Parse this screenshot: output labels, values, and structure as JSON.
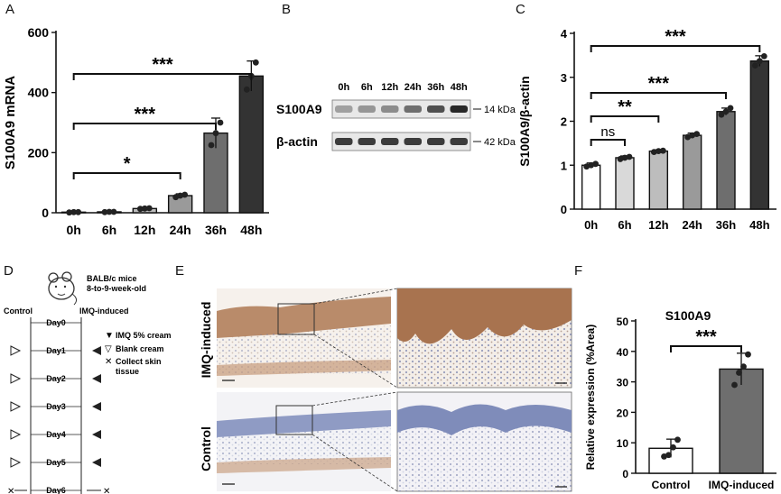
{
  "panels": {
    "a": "A",
    "b": "B",
    "c": "C",
    "d": "D",
    "e": "E",
    "f": "F"
  },
  "colors": {
    "white": "#ffffff",
    "light": "#d9d9d9",
    "mid1": "#bdbdbd",
    "mid2": "#9a9a9a",
    "dark1": "#6e6e6e",
    "dark2": "#333333",
    "dot": "#222222",
    "tissue": "#b07a52",
    "stainBlue": "#9aa6c8"
  },
  "chart_data": [
    {
      "id": "A",
      "type": "bar",
      "categories": [
        "0h",
        "6h",
        "12h",
        "24h",
        "36h",
        "48h"
      ],
      "values": [
        2,
        3,
        14,
        57,
        265,
        455
      ],
      "errors": [
        1,
        1,
        3,
        6,
        50,
        50
      ],
      "points": [
        [
          1,
          2,
          2
        ],
        [
          2,
          3,
          3
        ],
        [
          13,
          14,
          15
        ],
        [
          52,
          57,
          60
        ],
        [
          225,
          265,
          300
        ],
        [
          410,
          455,
          500
        ]
      ],
      "ylabel": "S100A9 mRNA",
      "ylim": [
        0,
        600
      ],
      "yticks": [
        0,
        200,
        400,
        600
      ],
      "annotations": [
        {
          "from": "0h",
          "to": "24h",
          "label": "*"
        },
        {
          "from": "0h",
          "to": "36h",
          "label": "***"
        },
        {
          "from": "0h",
          "to": "48h",
          "label": "***"
        }
      ]
    },
    {
      "id": "C",
      "type": "bar",
      "categories": [
        "0h",
        "6h",
        "12h",
        "24h",
        "36h",
        "48h"
      ],
      "values": [
        1.0,
        1.17,
        1.32,
        1.68,
        2.22,
        3.37
      ],
      "errors": [
        0.05,
        0.04,
        0.03,
        0.05,
        0.08,
        0.12
      ],
      "points": [
        [
          0.97,
          1.0,
          1.03
        ],
        [
          1.14,
          1.17,
          1.19
        ],
        [
          1.3,
          1.32,
          1.33
        ],
        [
          1.64,
          1.68,
          1.71
        ],
        [
          2.15,
          2.22,
          2.3
        ],
        [
          3.27,
          3.37,
          3.48
        ]
      ],
      "ylabel": "S100A9/β-actin",
      "ylim": [
        0,
        4
      ],
      "yticks": [
        0,
        1,
        2,
        3,
        4
      ],
      "annotations": [
        {
          "from": "0h",
          "to": "6h",
          "label": "ns"
        },
        {
          "from": "0h",
          "to": "12h",
          "label": "**"
        },
        {
          "from": "0h",
          "to": "36h",
          "label": "***"
        },
        {
          "from": "0h",
          "to": "48h",
          "label": "***"
        }
      ]
    },
    {
      "id": "F",
      "type": "bar",
      "title": "S100A9",
      "categories": [
        "Control",
        "IMQ-induced"
      ],
      "values": [
        8.2,
        34.2
      ],
      "errors": [
        3.0,
        5.2
      ],
      "points": [
        [
          5.5,
          6,
          8.5,
          11
        ],
        [
          29,
          33,
          35,
          39
        ]
      ],
      "ylabel": "Relative expression (%Area)",
      "ylim": [
        0,
        50
      ],
      "yticks": [
        0,
        10,
        20,
        30,
        40,
        50
      ],
      "annotations": [
        {
          "from": "Control",
          "to": "IMQ-induced",
          "label": "***"
        }
      ]
    }
  ],
  "blot": {
    "lanes": [
      "0h",
      "6h",
      "12h",
      "24h",
      "36h",
      "48h"
    ],
    "rows": [
      {
        "label": "S100A9",
        "kda": "14 kDa",
        "intensity": [
          0.35,
          0.4,
          0.45,
          0.6,
          0.75,
          0.95
        ]
      },
      {
        "label": "β-actin",
        "kda": "42 kDa",
        "intensity": [
          0.85,
          0.85,
          0.85,
          0.85,
          0.85,
          0.85
        ]
      }
    ]
  },
  "schematic": {
    "mouse_line1": "BALB/c mice",
    "mouse_line2": "8-to-9-week-old",
    "control": "Control",
    "imq": "IMQ-induced",
    "days": [
      "Day0",
      "Day1",
      "Day2",
      "Day3",
      "Day4",
      "Day5",
      "Day6"
    ],
    "legend": [
      {
        "symbol": "▼",
        "text": "IMQ 5% cream"
      },
      {
        "symbol": "▽",
        "text": "Blank cream"
      },
      {
        "symbol": "✕",
        "text": "Collect skin"
      },
      {
        "symbol": "",
        "text": "tissue"
      }
    ]
  },
  "histology": {
    "row1": "IMQ-induced",
    "row2": "Control"
  }
}
